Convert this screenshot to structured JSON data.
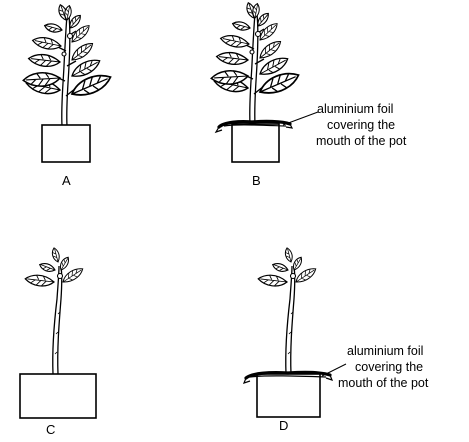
{
  "panels": [
    {
      "id": "A",
      "label": "A",
      "plant": "leafy",
      "foil": false
    },
    {
      "id": "B",
      "label": "B",
      "plant": "leafy",
      "foil": true
    },
    {
      "id": "C",
      "label": "C",
      "plant": "bare",
      "foil": false
    },
    {
      "id": "D",
      "label": "D",
      "plant": "bare",
      "foil": true
    }
  ],
  "annotations": {
    "b_foil": [
      "aluminium foil",
      "covering the",
      "mouth of the pot"
    ],
    "d_foil": [
      "aluminium foil",
      "covering the",
      "mouth of the pot"
    ]
  }
}
